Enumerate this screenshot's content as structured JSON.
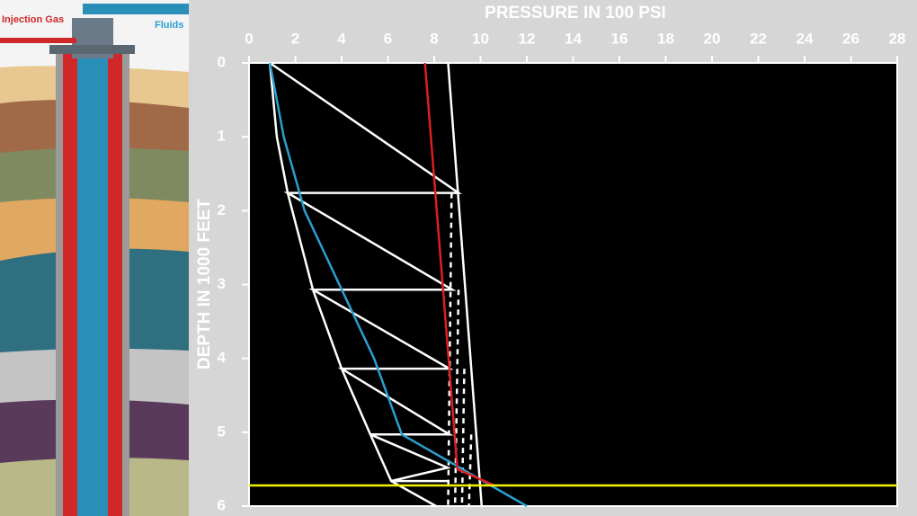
{
  "illustration": {
    "labels": [
      "Injection Gas",
      "Fluids"
    ]
  },
  "chart_data": {
    "type": "line",
    "x_label": "PRESSURE IN 100 PSI",
    "y_label": "DEPTH IN 1000 FEET",
    "x_axis_position": "top",
    "y_inverted": true,
    "xlim": [
      0,
      28
    ],
    "ylim": [
      0,
      6
    ],
    "xticks": [
      0,
      2,
      4,
      6,
      8,
      10,
      12,
      14,
      16,
      18,
      20,
      22,
      24,
      26,
      28
    ],
    "yticks": [
      0,
      1,
      2,
      3,
      4,
      5,
      6
    ],
    "plot_background": "#000000",
    "series": [
      {
        "color": "#ffffff",
        "style": "solid",
        "x": [
          8.6,
          10.05
        ],
        "y": [
          0,
          6
        ]
      },
      {
        "color": "#ffffff",
        "style": "solid",
        "x": [
          0.9,
          1.2,
          1.67,
          2.76,
          4.0,
          5.24,
          6.14,
          8.08
        ],
        "y": [
          0,
          1,
          1.76,
          3.07,
          4.14,
          5.03,
          5.66,
          6
        ]
      },
      {
        "color": "#ffffff",
        "style": "solid",
        "x": [
          0.9,
          9.05,
          1.67,
          8.78,
          2.76,
          8.66,
          4.0,
          8.66,
          5.24,
          8.58,
          6.14,
          8.58
        ],
        "y": [
          0,
          1.76,
          1.76,
          3.07,
          3.07,
          4.14,
          4.14,
          5.03,
          5.03,
          5.48,
          5.66,
          5.66
        ]
      },
      {
        "color": "#ffffff",
        "style": "dashed",
        "x": [
          8.75,
          8.6
        ],
        "y": [
          1.76,
          6
        ]
      },
      {
        "color": "#ffffff",
        "style": "dashed",
        "x": [
          9.05,
          8.9
        ],
        "y": [
          3.07,
          6
        ]
      },
      {
        "color": "#ffffff",
        "style": "dashed",
        "x": [
          9.3,
          9.2
        ],
        "y": [
          4.14,
          6
        ]
      },
      {
        "color": "#ffffff",
        "style": "dashed",
        "x": [
          9.6,
          9.5
        ],
        "y": [
          5.03,
          6
        ]
      },
      {
        "color": "#2aa0d0",
        "style": "solid",
        "x": [
          0.9,
          1.5,
          2.4,
          3.9,
          5.4,
          6.6,
          12.0
        ],
        "y": [
          0,
          1,
          2,
          3,
          4,
          5.03,
          6
        ]
      },
      {
        "color": "#e01e1e",
        "style": "solid",
        "x": [
          7.6,
          9.0,
          10.6
        ],
        "y": [
          0,
          5.5,
          5.72
        ]
      },
      {
        "color": "#f0f000",
        "style": "solid",
        "x": [
          0,
          28
        ],
        "y": [
          5.72,
          5.72
        ]
      }
    ]
  }
}
